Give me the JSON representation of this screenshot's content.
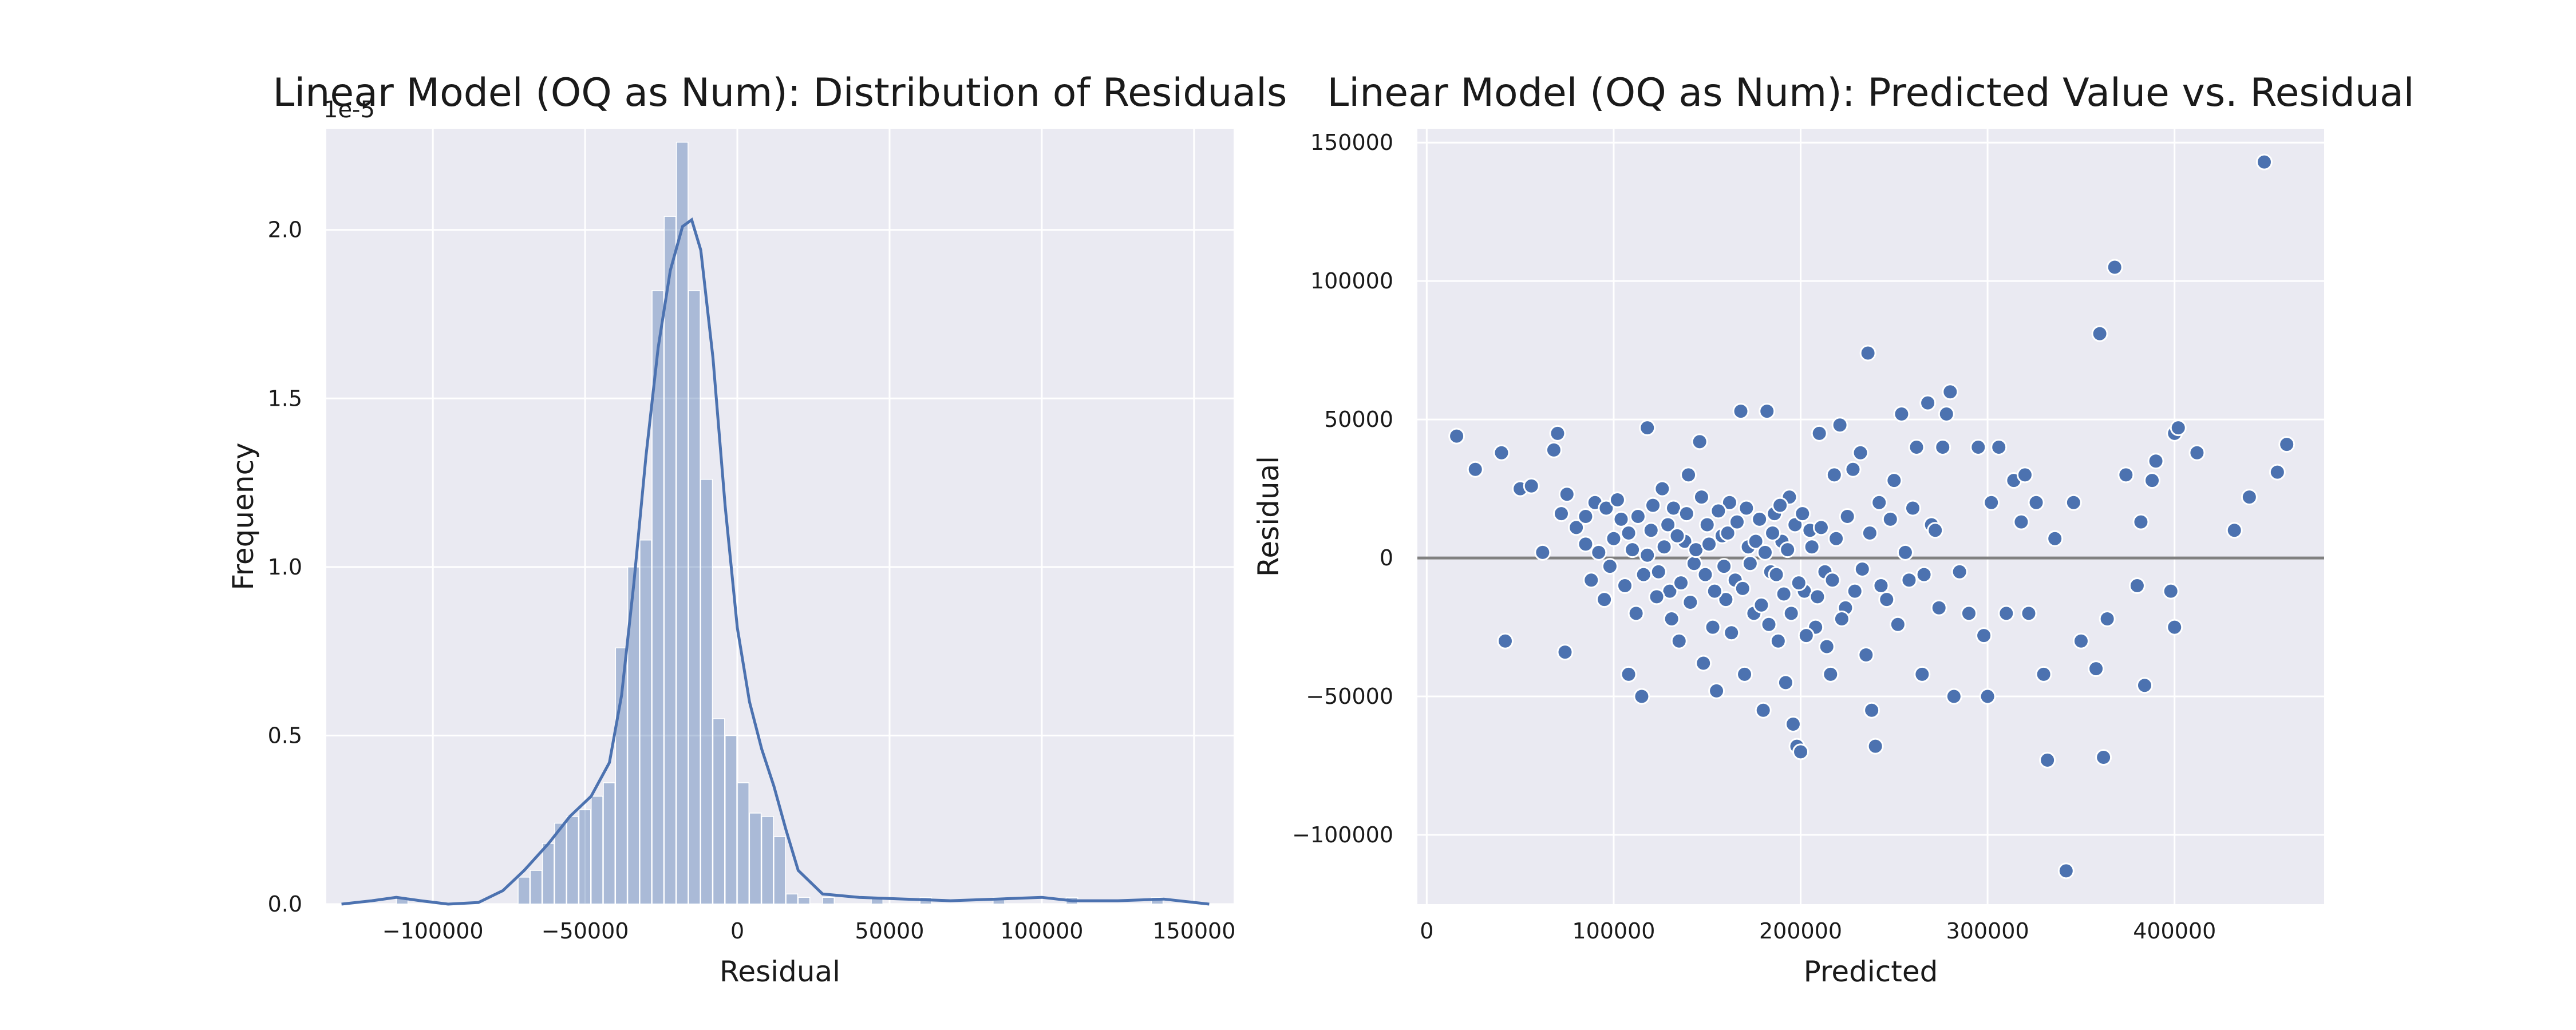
{
  "chart_data": [
    {
      "type": "bar",
      "title": "Linear Model (OQ as Num): Distribution of Residuals",
      "xlabel": "Residual",
      "ylabel": "Frequency",
      "y_offset_label": "1e-5",
      "xlim": [
        -135000,
        163000
      ],
      "ylim": [
        0,
        2.3
      ],
      "xticks": [
        -100000,
        -50000,
        0,
        50000,
        100000,
        150000
      ],
      "yticks": [
        0.0,
        0.5,
        1.0,
        1.5,
        2.0
      ],
      "grid": true,
      "bar_color": "#4c72b0",
      "bin_width": 4000,
      "histogram": [
        [
          -112000,
          0.02
        ],
        [
          -72000,
          0.08
        ],
        [
          -68000,
          0.1
        ],
        [
          -64000,
          0.18
        ],
        [
          -60000,
          0.24
        ],
        [
          -56000,
          0.26
        ],
        [
          -52000,
          0.28
        ],
        [
          -48000,
          0.32
        ],
        [
          -44000,
          0.36
        ],
        [
          -40000,
          0.76
        ],
        [
          -36000,
          1.0
        ],
        [
          -32000,
          1.08
        ],
        [
          -28000,
          1.82
        ],
        [
          -24000,
          2.04
        ],
        [
          -20000,
          2.26
        ],
        [
          -16000,
          1.82
        ],
        [
          -12000,
          1.26
        ],
        [
          -8000,
          0.55
        ],
        [
          -4000,
          0.5
        ],
        [
          0,
          0.36
        ],
        [
          4000,
          0.27
        ],
        [
          8000,
          0.26
        ],
        [
          12000,
          0.2
        ],
        [
          16000,
          0.03
        ],
        [
          20000,
          0.02
        ],
        [
          28000,
          0.02
        ],
        [
          44000,
          0.02
        ],
        [
          60000,
          0.02
        ],
        [
          84000,
          0.02
        ],
        [
          108000,
          0.02
        ],
        [
          136000,
          0.02
        ]
      ],
      "kde": [
        [
          -130000,
          0.0
        ],
        [
          -120000,
          0.01
        ],
        [
          -112000,
          0.02
        ],
        [
          -104000,
          0.01
        ],
        [
          -95000,
          0.0
        ],
        [
          -85000,
          0.005
        ],
        [
          -77000,
          0.04
        ],
        [
          -70000,
          0.1
        ],
        [
          -62000,
          0.18
        ],
        [
          -55000,
          0.26
        ],
        [
          -48000,
          0.32
        ],
        [
          -42000,
          0.42
        ],
        [
          -38000,
          0.62
        ],
        [
          -34000,
          0.95
        ],
        [
          -30000,
          1.33
        ],
        [
          -26000,
          1.65
        ],
        [
          -22000,
          1.88
        ],
        [
          -18000,
          2.01
        ],
        [
          -15000,
          2.03
        ],
        [
          -12000,
          1.94
        ],
        [
          -8000,
          1.62
        ],
        [
          -4000,
          1.18
        ],
        [
          0,
          0.82
        ],
        [
          4000,
          0.6
        ],
        [
          8000,
          0.46
        ],
        [
          12000,
          0.35
        ],
        [
          16000,
          0.22
        ],
        [
          20000,
          0.1
        ],
        [
          28000,
          0.03
        ],
        [
          40000,
          0.02
        ],
        [
          55000,
          0.015
        ],
        [
          70000,
          0.01
        ],
        [
          85000,
          0.015
        ],
        [
          100000,
          0.02
        ],
        [
          110000,
          0.01
        ],
        [
          125000,
          0.01
        ],
        [
          140000,
          0.015
        ],
        [
          155000,
          0.0
        ]
      ]
    },
    {
      "type": "scatter",
      "title": "Linear Model (OQ as Num): Predicted Value vs. Residual",
      "xlabel": "Predicted",
      "ylabel": "Residual",
      "xlim": [
        -5000,
        480000
      ],
      "ylim": [
        -125000,
        155000
      ],
      "xticks": [
        0,
        100000,
        200000,
        300000,
        400000
      ],
      "yticks": [
        -100000,
        -50000,
        0,
        50000,
        100000,
        150000
      ],
      "grid": true,
      "point_color": "#4c72b0",
      "reference_line": {
        "y": 0,
        "color": "#808080"
      },
      "points": [
        [
          16000,
          44000
        ],
        [
          26000,
          32000
        ],
        [
          40000,
          38000
        ],
        [
          42000,
          -30000
        ],
        [
          50000,
          25000
        ],
        [
          56000,
          26000
        ],
        [
          62000,
          2000
        ],
        [
          70000,
          45000
        ],
        [
          68000,
          39000
        ],
        [
          72000,
          16000
        ],
        [
          74000,
          -34000
        ],
        [
          75000,
          23000
        ],
        [
          80000,
          11000
        ],
        [
          85000,
          5000
        ],
        [
          90000,
          20000
        ],
        [
          95000,
          -15000
        ],
        [
          100000,
          7000
        ],
        [
          104000,
          14000
        ],
        [
          108000,
          -42000
        ],
        [
          110000,
          3000
        ],
        [
          112000,
          -20000
        ],
        [
          115000,
          -50000
        ],
        [
          118000,
          47000
        ],
        [
          120000,
          10000
        ],
        [
          124000,
          -5000
        ],
        [
          126000,
          25000
        ],
        [
          130000,
          -12000
        ],
        [
          132000,
          18000
        ],
        [
          135000,
          -30000
        ],
        [
          138000,
          6000
        ],
        [
          140000,
          30000
        ],
        [
          143000,
          -2000
        ],
        [
          146000,
          42000
        ],
        [
          148000,
          -38000
        ],
        [
          150000,
          12000
        ],
        [
          153000,
          -25000
        ],
        [
          155000,
          -48000
        ],
        [
          158000,
          8000
        ],
        [
          160000,
          -15000
        ],
        [
          162000,
          20000
        ],
        [
          165000,
          -8000
        ],
        [
          168000,
          53000
        ],
        [
          170000,
          -42000
        ],
        [
          172000,
          4000
        ],
        [
          175000,
          -20000
        ],
        [
          178000,
          14000
        ],
        [
          180000,
          -55000
        ],
        [
          182000,
          53000
        ],
        [
          184000,
          -5000
        ],
        [
          186000,
          16000
        ],
        [
          188000,
          -30000
        ],
        [
          190000,
          6000
        ],
        [
          192000,
          -45000
        ],
        [
          194000,
          22000
        ],
        [
          196000,
          -60000
        ],
        [
          198000,
          -68000
        ],
        [
          200000,
          -70000
        ],
        [
          202000,
          -12000
        ],
        [
          205000,
          10000
        ],
        [
          208000,
          -25000
        ],
        [
          210000,
          45000
        ],
        [
          213000,
          -5000
        ],
        [
          216000,
          -42000
        ],
        [
          218000,
          30000
        ],
        [
          221000,
          48000
        ],
        [
          224000,
          -18000
        ],
        [
          228000,
          32000
        ],
        [
          232000,
          38000
        ],
        [
          235000,
          -35000
        ],
        [
          236000,
          74000
        ],
        [
          238000,
          -55000
        ],
        [
          240000,
          -68000
        ],
        [
          242000,
          20000
        ],
        [
          246000,
          -15000
        ],
        [
          250000,
          28000
        ],
        [
          254000,
          52000
        ],
        [
          258000,
          -8000
        ],
        [
          262000,
          40000
        ],
        [
          265000,
          -42000
        ],
        [
          268000,
          56000
        ],
        [
          270000,
          12000
        ],
        [
          274000,
          -18000
        ],
        [
          276000,
          40000
        ],
        [
          278000,
          52000
        ],
        [
          280000,
          60000
        ],
        [
          282000,
          -50000
        ],
        [
          285000,
          -5000
        ],
        [
          290000,
          -20000
        ],
        [
          295000,
          40000
        ],
        [
          298000,
          -28000
        ],
        [
          300000,
          -50000
        ],
        [
          302000,
          20000
        ],
        [
          306000,
          40000
        ],
        [
          310000,
          -20000
        ],
        [
          314000,
          28000
        ],
        [
          318000,
          13000
        ],
        [
          320000,
          30000
        ],
        [
          322000,
          -20000
        ],
        [
          326000,
          20000
        ],
        [
          330000,
          -42000
        ],
        [
          332000,
          -73000
        ],
        [
          336000,
          7000
        ],
        [
          342000,
          -113000
        ],
        [
          346000,
          20000
        ],
        [
          350000,
          -30000
        ],
        [
          358000,
          -40000
        ],
        [
          360000,
          81000
        ],
        [
          362000,
          -72000
        ],
        [
          364000,
          -22000
        ],
        [
          368000,
          105000
        ],
        [
          374000,
          30000
        ],
        [
          380000,
          -10000
        ],
        [
          382000,
          13000
        ],
        [
          384000,
          -46000
        ],
        [
          388000,
          28000
        ],
        [
          390000,
          35000
        ],
        [
          398000,
          -12000
        ],
        [
          400000,
          45000
        ],
        [
          402000,
          47000
        ],
        [
          400000,
          -25000
        ],
        [
          412000,
          38000
        ],
        [
          432000,
          10000
        ],
        [
          440000,
          22000
        ],
        [
          448000,
          143000
        ],
        [
          455000,
          31000
        ],
        [
          460000,
          41000
        ],
        [
          85000,
          15000
        ],
        [
          88000,
          -8000
        ],
        [
          92000,
          2000
        ],
        [
          96000,
          18000
        ],
        [
          98000,
          -3000
        ],
        [
          102000,
          21000
        ],
        [
          106000,
          -10000
        ],
        [
          108000,
          9000
        ],
        [
          113000,
          15000
        ],
        [
          116000,
          -6000
        ],
        [
          118000,
          1000
        ],
        [
          121000,
          19000
        ],
        [
          123000,
          -14000
        ],
        [
          127000,
          4000
        ],
        [
          129000,
          12000
        ],
        [
          131000,
          -22000
        ],
        [
          134000,
          8000
        ],
        [
          136000,
          -9000
        ],
        [
          139000,
          16000
        ],
        [
          141000,
          -16000
        ],
        [
          144000,
          3000
        ],
        [
          147000,
          22000
        ],
        [
          149000,
          -6000
        ],
        [
          151000,
          5000
        ],
        [
          154000,
          -12000
        ],
        [
          156000,
          17000
        ],
        [
          159000,
          -3000
        ],
        [
          161000,
          9000
        ],
        [
          163000,
          -27000
        ],
        [
          166000,
          13000
        ],
        [
          169000,
          -11000
        ],
        [
          171000,
          18000
        ],
        [
          173000,
          -2000
        ],
        [
          176000,
          6000
        ],
        [
          179000,
          -17000
        ],
        [
          181000,
          2000
        ],
        [
          183000,
          -24000
        ],
        [
          185000,
          9000
        ],
        [
          187000,
          -6000
        ],
        [
          189000,
          19000
        ],
        [
          191000,
          -13000
        ],
        [
          193000,
          3000
        ],
        [
          195000,
          -20000
        ],
        [
          197000,
          12000
        ],
        [
          199000,
          -9000
        ],
        [
          201000,
          16000
        ],
        [
          203000,
          -28000
        ],
        [
          206000,
          4000
        ],
        [
          209000,
          -14000
        ],
        [
          211000,
          11000
        ],
        [
          214000,
          -32000
        ],
        [
          217000,
          -8000
        ],
        [
          219000,
          7000
        ],
        [
          222000,
          -22000
        ],
        [
          225000,
          15000
        ],
        [
          229000,
          -12000
        ],
        [
          233000,
          -4000
        ],
        [
          237000,
          9000
        ],
        [
          243000,
          -10000
        ],
        [
          248000,
          14000
        ],
        [
          252000,
          -24000
        ],
        [
          256000,
          2000
        ],
        [
          260000,
          18000
        ],
        [
          266000,
          -6000
        ],
        [
          272000,
          10000
        ]
      ]
    }
  ]
}
